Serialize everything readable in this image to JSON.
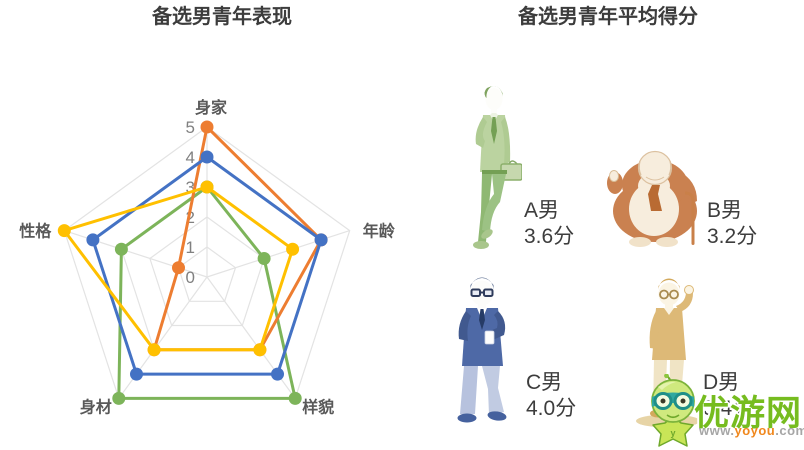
{
  "left_panel": {
    "title": "备选男青年表现"
  },
  "chart_data": {
    "type": "radar",
    "title": "备选男青年表现",
    "categories": [
      "身家",
      "年龄",
      "样貌",
      "身材",
      "性格"
    ],
    "scale": {
      "min": 0,
      "max": 5,
      "step": 1
    },
    "grid": true,
    "legend": "none",
    "series": [
      {
        "name": "A男",
        "color": "#7DB45A",
        "values": [
          3,
          2,
          5,
          5,
          3
        ],
        "average": 3.6
      },
      {
        "name": "B男",
        "color": "#ED7D31",
        "values": [
          5,
          4,
          3,
          3,
          1
        ],
        "average": 3.2
      },
      {
        "name": "C男",
        "color": "#4472C4",
        "values": [
          4,
          4,
          4,
          4,
          4
        ],
        "average": 4.0
      },
      {
        "name": "D男",
        "color": "#FFC000",
        "values": [
          3,
          3,
          3,
          3,
          5
        ],
        "average": 3.4
      }
    ]
  },
  "right_panel": {
    "title": "备选男青年平均得分",
    "candidates": [
      {
        "label": "A男",
        "score": "3.6分",
        "figure": "green-young-businessman"
      },
      {
        "label": "B男",
        "score": "3.2分",
        "figure": "fat-rich-older-man-with-cane"
      },
      {
        "label": "C男",
        "score": "4.0分",
        "figure": "blue-suit-glasses-man"
      },
      {
        "label": "D男",
        "score": "3.4分",
        "figure": "tan-casual-glasses-man"
      }
    ]
  },
  "watermark": {
    "site_name": "优游网",
    "url_www": "www.",
    "url_name": "yoyou",
    "url_com": ".com"
  },
  "colors": {
    "grid": "#E3E3E3",
    "tick": "#808080",
    "axis_label": "#595959",
    "title": "#3C3C3C",
    "brand_green": "#76BC1F",
    "url_orange": "#F0881E",
    "url_gray": "#A6A6A6"
  }
}
